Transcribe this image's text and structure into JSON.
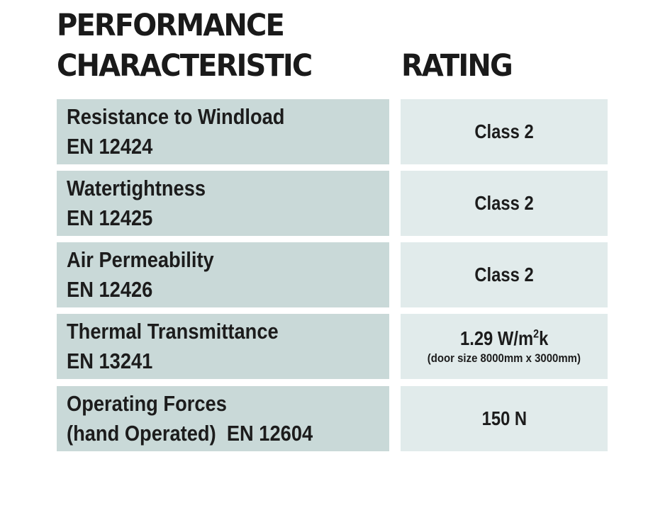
{
  "headers": {
    "characteristic_line1": "PERFORMANCE",
    "characteristic_line2": "CHARACTERISTIC",
    "rating": "RATING"
  },
  "rows": [
    {
      "name": "Resistance to Windload",
      "standard": "EN 12424",
      "rating": "Class 2"
    },
    {
      "name": "Watertightness",
      "standard": "EN 12425",
      "rating": "Class 2"
    },
    {
      "name": "Air Permeability",
      "standard": "EN 12426",
      "rating": "Class 2"
    },
    {
      "name": "Thermal Transmittance",
      "standard": "EN 13241",
      "rating_main": "1.29 W/m",
      "rating_sup": "2",
      "rating_tail": "k",
      "rating_note": "(door size 8000mm x 3000mm)"
    },
    {
      "name": "Operating Forces",
      "standard": "(hand Operated)  EN 12604",
      "rating": "150 N"
    }
  ],
  "colors": {
    "left_cell": "#c9d9d8",
    "right_cell": "#e1ebeb",
    "text": "#1c1c1c"
  }
}
